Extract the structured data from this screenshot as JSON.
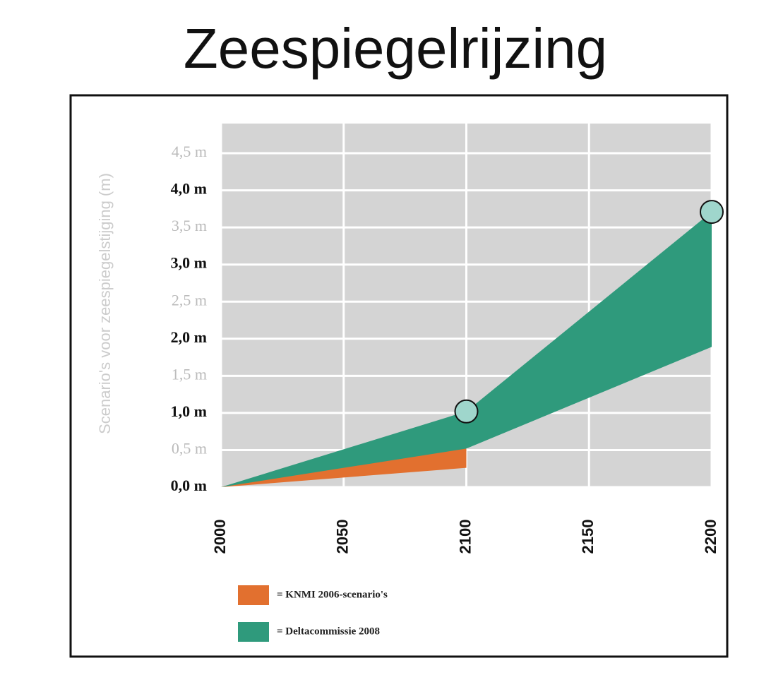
{
  "chart_data": {
    "type": "band",
    "title": "Zeespiegelrijzing",
    "y_label": "Scenario's voor zeespiegelstijging (m)",
    "xlim": [
      2000,
      2200
    ],
    "xticks": [
      2000,
      2050,
      2100,
      2150,
      2200
    ],
    "ylim": [
      0,
      4.9
    ],
    "yticks": [
      {
        "value": 0,
        "label": "0,0 m"
      },
      {
        "value": 0.5,
        "label": "0,5 m"
      },
      {
        "value": 1,
        "label": "1,0 m"
      },
      {
        "value": 1.5,
        "label": "1,5 m"
      },
      {
        "value": 2,
        "label": "2,0 m"
      },
      {
        "value": 2.5,
        "label": "2,5 m"
      },
      {
        "value": 3,
        "label": "3,0 m"
      },
      {
        "value": 3.5,
        "label": "3,5 m"
      },
      {
        "value": 4,
        "label": "4,0 m"
      },
      {
        "value": 4.5,
        "label": "4,5 m"
      }
    ],
    "grid": true,
    "series": [
      {
        "name": "= KNMI 2006-scenario's",
        "color": "#e2702f",
        "x": [
          2000,
          2100
        ],
        "lower": [
          0,
          0.26
        ],
        "upper": [
          0,
          0.74
        ]
      },
      {
        "name": "= Deltacommissie 2008",
        "color": "#2f9a7c",
        "x": [
          2000,
          2100,
          2200
        ],
        "lower": [
          0,
          0.52,
          1.89
        ],
        "upper": [
          0,
          1.02,
          3.71
        ]
      }
    ]
  }
}
